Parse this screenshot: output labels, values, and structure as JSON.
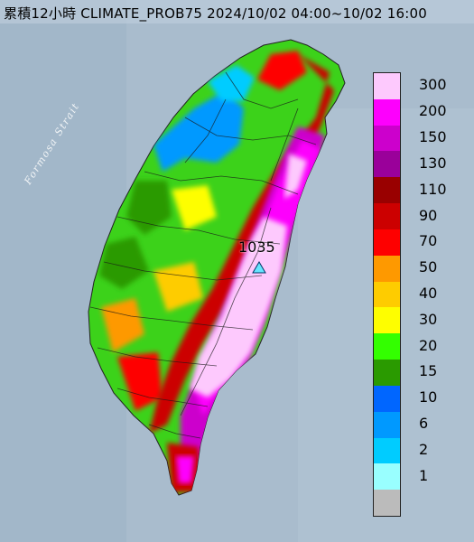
{
  "title": "累積12小時 CLIMATE_PROB75 2024/10/02 04:00~10/02 16:00",
  "strait_label": "Formosa Strait",
  "max_value_label": "1035",
  "legend": [
    {
      "label": "300",
      "color": "#fdc9fd"
    },
    {
      "label": "200",
      "color": "#fd00fd"
    },
    {
      "label": "150",
      "color": "#cc00cc"
    },
    {
      "label": "130",
      "color": "#9a009a"
    },
    {
      "label": "110",
      "color": "#990000"
    },
    {
      "label": "90",
      "color": "#cc0000"
    },
    {
      "label": "70",
      "color": "#fe0000"
    },
    {
      "label": "50",
      "color": "#fe9900"
    },
    {
      "label": "40",
      "color": "#fecc00"
    },
    {
      "label": "30",
      "color": "#fefe00"
    },
    {
      "label": "20",
      "color": "#33ff00"
    },
    {
      "label": "15",
      "color": "#2a9a00"
    },
    {
      "label": "10",
      "color": "#0066ff"
    },
    {
      "label": "6",
      "color": "#0099ff"
    },
    {
      "label": "2",
      "color": "#00ccff"
    },
    {
      "label": "1",
      "color": "#99ffff"
    },
    {
      "label": "",
      "color": "#bbbbbb"
    }
  ]
}
